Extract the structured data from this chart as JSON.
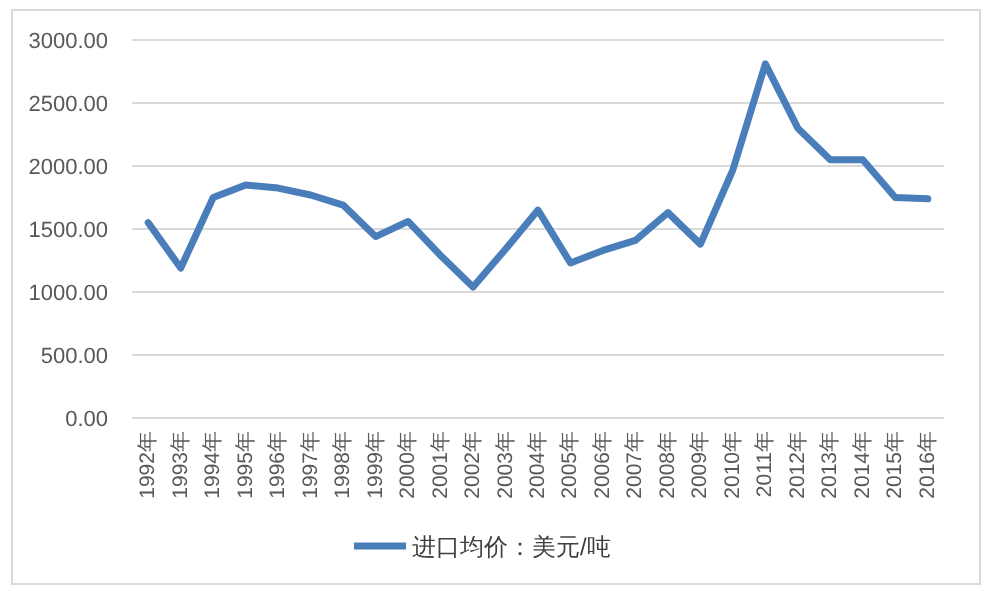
{
  "chart_data": {
    "type": "line",
    "categories": [
      "1992年",
      "1993年",
      "1994年",
      "1995年",
      "1996年",
      "1997年",
      "1998年",
      "1999年",
      "2000年",
      "2001年",
      "2002年",
      "2003年",
      "2004年",
      "2005年",
      "2006年",
      "2007年",
      "2008年",
      "2009年",
      "2010年",
      "2011年",
      "2012年",
      "2013年",
      "2014年",
      "2015年",
      "2016年"
    ],
    "series": [
      {
        "name": "进口均价：美元/吨",
        "color": "#4a7ebb",
        "values": [
          1550,
          1190,
          1750,
          1850,
          1825,
          1770,
          1690,
          1440,
          1560,
          1290,
          1040,
          1340,
          1650,
          1230,
          1330,
          1410,
          1630,
          1380,
          1970,
          2810,
          2300,
          2050,
          2050,
          1750,
          1740
        ]
      }
    ],
    "ylim": [
      0,
      3000
    ],
    "yticks": [
      {
        "value": 0,
        "label": "0.00"
      },
      {
        "value": 500,
        "label": "500.00"
      },
      {
        "value": 1000,
        "label": "1000.00"
      },
      {
        "value": 1500,
        "label": "1500.00"
      },
      {
        "value": 2000,
        "label": "2000.00"
      },
      {
        "value": 2500,
        "label": "2500.00"
      },
      {
        "value": 3000,
        "label": "3000.00"
      }
    ],
    "grid": "y",
    "legend": "bottom",
    "marker": "none",
    "line_style": "solid"
  }
}
